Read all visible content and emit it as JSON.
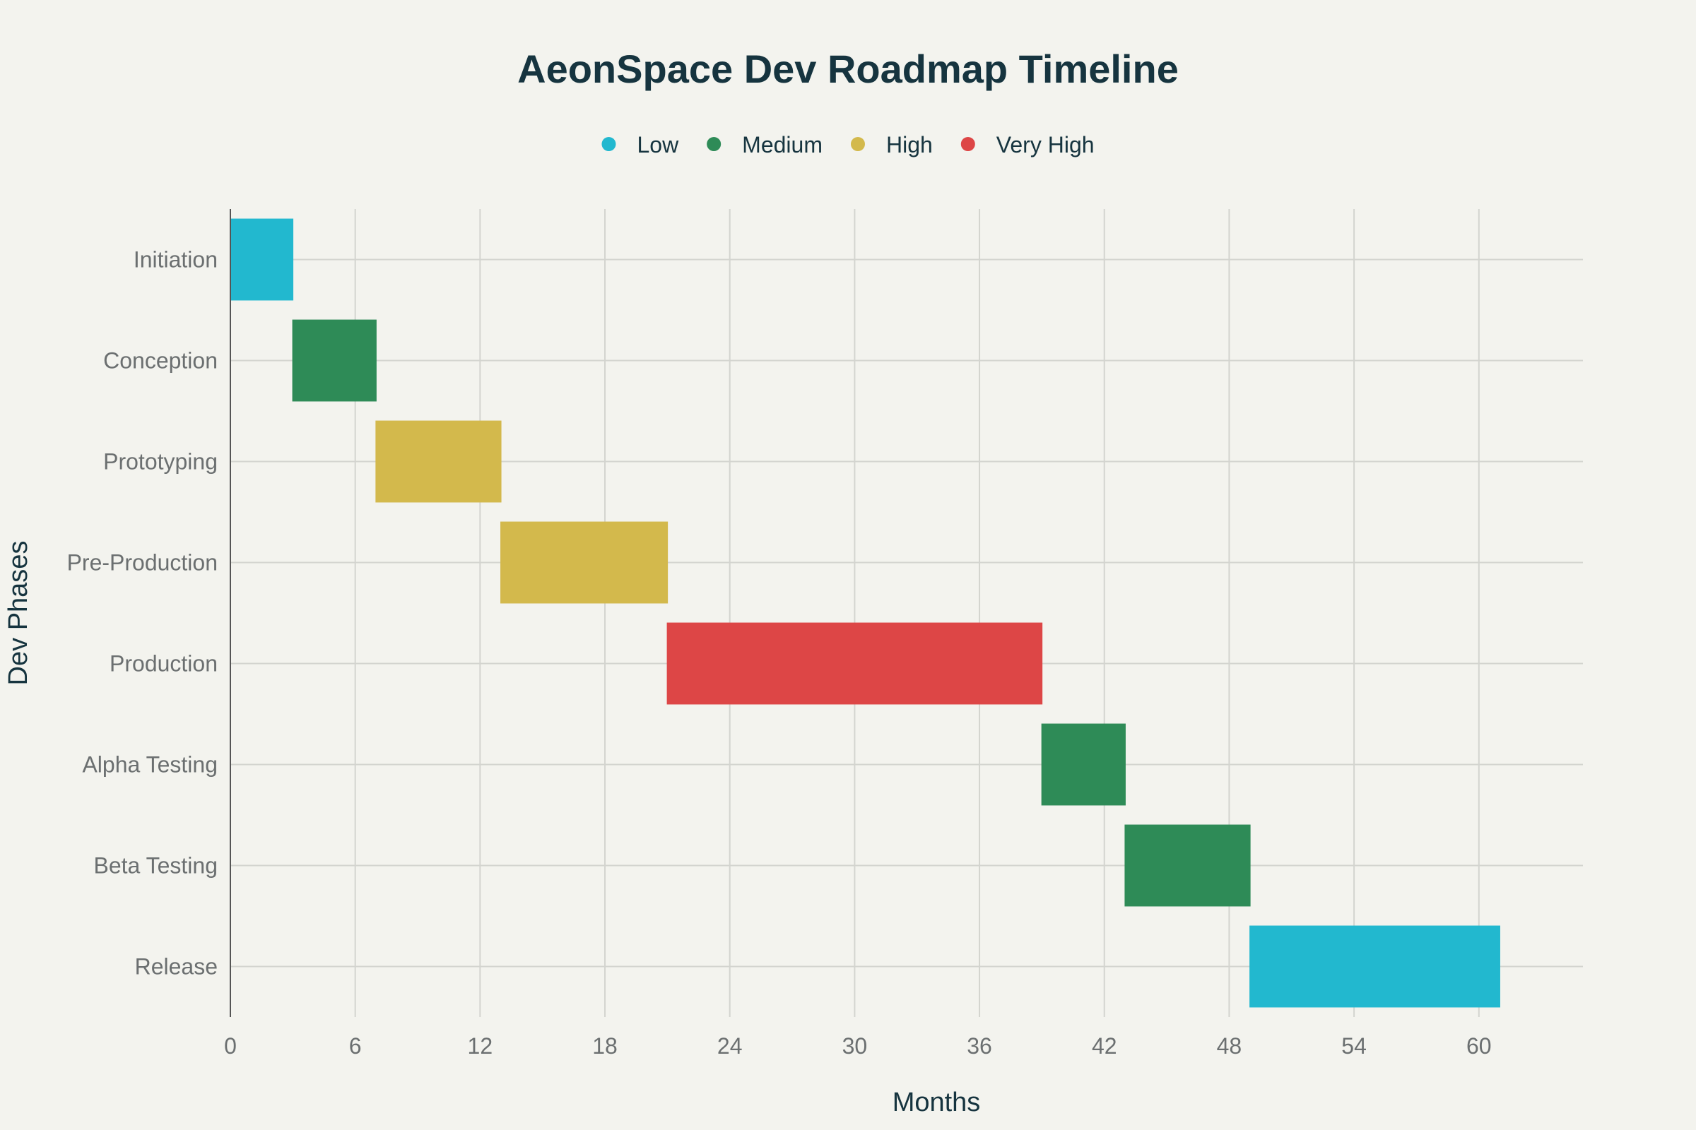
{
  "chart_data": {
    "type": "bar",
    "orientation": "horizontal-gantt",
    "title": "AeonSpace Dev Roadmap Timeline",
    "xlabel": "Months",
    "ylabel": "Dev Phases",
    "xlim": [
      0,
      65
    ],
    "xticks": [
      0,
      6,
      12,
      18,
      24,
      30,
      36,
      42,
      48,
      54,
      60
    ],
    "grid": true,
    "legend_position": "top-center",
    "legend": [
      {
        "name": "Low",
        "color": "#22b8cf"
      },
      {
        "name": "Medium",
        "color": "#2e8b57"
      },
      {
        "name": "High",
        "color": "#d3b94c"
      },
      {
        "name": "Very High",
        "color": "#dd4646"
      }
    ],
    "tasks": [
      {
        "name": "Initiation",
        "start": 0,
        "end": 3,
        "level": "Low"
      },
      {
        "name": "Conception",
        "start": 3,
        "end": 7,
        "level": "Medium"
      },
      {
        "name": "Prototyping",
        "start": 7,
        "end": 13,
        "level": "High"
      },
      {
        "name": "Pre-Production",
        "start": 13,
        "end": 21,
        "level": "High"
      },
      {
        "name": "Production",
        "start": 21,
        "end": 39,
        "level": "Very High"
      },
      {
        "name": "Alpha Testing",
        "start": 39,
        "end": 43,
        "level": "Medium"
      },
      {
        "name": "Beta Testing",
        "start": 43,
        "end": 49,
        "level": "Medium"
      },
      {
        "name": "Release",
        "start": 49,
        "end": 61,
        "level": "Low"
      }
    ]
  }
}
